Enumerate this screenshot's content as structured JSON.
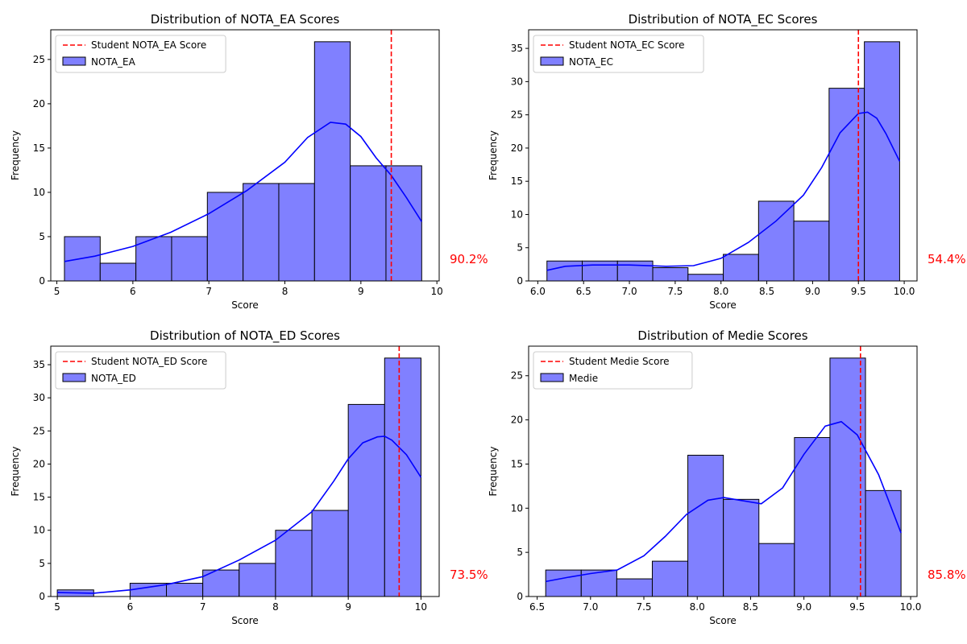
{
  "chart_data": [
    {
      "type": "bar",
      "title": "Distribution of NOTA_EA Scores",
      "xlabel": "Score",
      "ylabel": "Frequency",
      "xlim": [
        4.92,
        10.03
      ],
      "ylim": [
        0,
        28.35
      ],
      "xticks": [
        "5",
        "6",
        "7",
        "8",
        "9",
        "10"
      ],
      "xtick_values": [
        5,
        6,
        7,
        8,
        9,
        10
      ],
      "yticks": [
        "0",
        "5",
        "10",
        "15",
        "20",
        "25"
      ],
      "ytick_values": [
        0,
        5,
        10,
        15,
        20,
        25
      ],
      "bin_edges": [
        5.1,
        5.57,
        6.04,
        6.51,
        6.98,
        7.45,
        7.92,
        8.39,
        8.86,
        9.33,
        9.8
      ],
      "values": [
        5,
        2,
        5,
        5,
        10,
        11,
        11,
        27,
        13,
        13
      ],
      "kde": {
        "x": [
          5.1,
          5.5,
          6.0,
          6.5,
          7.0,
          7.5,
          8.0,
          8.3,
          8.6,
          8.8,
          9.0,
          9.2,
          9.4,
          9.6,
          9.8
        ],
        "y": [
          2.2,
          2.8,
          3.9,
          5.5,
          7.6,
          10.2,
          13.4,
          16.2,
          17.9,
          17.7,
          16.3,
          13.9,
          11.9,
          9.4,
          6.7
        ]
      },
      "student_score": 9.4,
      "legend": [
        "Student NOTA_EA Score",
        "NOTA_EA"
      ],
      "legend_position": "top-left",
      "percentile_label": "90.2%",
      "grid": false
    },
    {
      "type": "bar",
      "title": "Distribution of NOTA_EC Scores",
      "xlabel": "Score",
      "ylabel": "Frequency",
      "xlim": [
        5.9,
        10.14
      ],
      "ylim": [
        0,
        37.8
      ],
      "xticks": [
        "6.0",
        "6.5",
        "7.0",
        "7.5",
        "8.0",
        "8.5",
        "9.0",
        "9.5",
        "10.0"
      ],
      "xtick_values": [
        6.0,
        6.5,
        7.0,
        7.5,
        8.0,
        8.5,
        9.0,
        9.5,
        10.0
      ],
      "yticks": [
        "0",
        "5",
        "10",
        "15",
        "20",
        "25",
        "30",
        "35"
      ],
      "ytick_values": [
        0,
        5,
        10,
        15,
        20,
        25,
        30,
        35
      ],
      "bin_edges": [
        6.1,
        6.485,
        6.87,
        7.255,
        7.64,
        8.025,
        8.41,
        8.795,
        9.18,
        9.565,
        9.95
      ],
      "values": [
        3,
        3,
        3,
        2,
        1,
        4,
        12,
        9,
        29,
        36
      ],
      "kde": {
        "x": [
          6.1,
          6.3,
          6.6,
          7.0,
          7.4,
          7.7,
          8.0,
          8.3,
          8.6,
          8.9,
          9.1,
          9.3,
          9.5,
          9.6,
          9.7,
          9.8,
          9.95
        ],
        "y": [
          1.6,
          2.2,
          2.4,
          2.4,
          2.2,
          2.3,
          3.4,
          5.8,
          9.0,
          12.9,
          17.1,
          22.3,
          25.2,
          25.4,
          24.5,
          22.2,
          18.0
        ]
      },
      "student_score": 9.5,
      "legend": [
        "Student NOTA_EC Score",
        "NOTA_EC"
      ],
      "legend_position": "top-left",
      "percentile_label": "54.4%",
      "grid": false
    },
    {
      "type": "bar",
      "title": "Distribution of NOTA_ED Scores",
      "xlabel": "Score",
      "ylabel": "Frequency",
      "xlim": [
        4.91,
        10.25
      ],
      "ylim": [
        0,
        37.8
      ],
      "xticks": [
        "5",
        "6",
        "7",
        "8",
        "9",
        "10"
      ],
      "xtick_values": [
        5,
        6,
        7,
        8,
        9,
        10
      ],
      "yticks": [
        "0",
        "5",
        "10",
        "15",
        "20",
        "25",
        "30",
        "35"
      ],
      "ytick_values": [
        0,
        5,
        10,
        15,
        20,
        25,
        30,
        35
      ],
      "bin_edges": [
        5.0,
        5.5,
        6.0,
        6.5,
        7.0,
        7.5,
        8.0,
        8.5,
        9.0,
        9.5,
        10.0
      ],
      "values": [
        1,
        0,
        2,
        2,
        4,
        5,
        10,
        13,
        29,
        36
      ],
      "kde": {
        "x": [
          5.0,
          5.5,
          6.0,
          6.5,
          7.0,
          7.5,
          8.0,
          8.5,
          8.8,
          9.0,
          9.2,
          9.4,
          9.5,
          9.6,
          9.8,
          10.0
        ],
        "y": [
          0.6,
          0.5,
          1.0,
          1.8,
          3.0,
          5.5,
          8.5,
          12.8,
          17.4,
          20.8,
          23.2,
          24.1,
          24.2,
          23.6,
          21.4,
          18.0
        ]
      },
      "student_score": 9.7,
      "legend": [
        "Student NOTA_ED Score",
        "NOTA_ED"
      ],
      "legend_position": "top-left",
      "percentile_label": "73.5%",
      "grid": false
    },
    {
      "type": "bar",
      "title": "Distribution of Medie Scores",
      "xlabel": "Score",
      "ylabel": "Frequency",
      "xlim": [
        6.42,
        10.06
      ],
      "ylim": [
        0,
        28.35
      ],
      "xticks": [
        "6.5",
        "7.0",
        "7.5",
        "8.0",
        "8.5",
        "9.0",
        "9.5",
        "10.0"
      ],
      "xtick_values": [
        6.5,
        7.0,
        7.5,
        8.0,
        8.5,
        9.0,
        9.5,
        10.0
      ],
      "yticks": [
        "0",
        "5",
        "10",
        "15",
        "20",
        "25"
      ],
      "ytick_values": [
        0,
        5,
        10,
        15,
        20,
        25
      ],
      "bin_edges": [
        6.58,
        6.913,
        7.246,
        7.579,
        7.912,
        8.245,
        8.578,
        8.911,
        9.244,
        9.577,
        9.91
      ],
      "values": [
        3,
        3,
        2,
        4,
        16,
        11,
        6,
        18,
        27,
        12
      ],
      "kde": {
        "x": [
          6.58,
          6.8,
          7.0,
          7.25,
          7.5,
          7.7,
          7.9,
          8.1,
          8.25,
          8.4,
          8.6,
          8.8,
          9.0,
          9.2,
          9.35,
          9.5,
          9.7,
          9.91
        ],
        "y": [
          1.7,
          2.2,
          2.6,
          3.0,
          4.6,
          6.8,
          9.3,
          10.9,
          11.2,
          10.9,
          10.5,
          12.3,
          16.1,
          19.3,
          19.8,
          18.3,
          13.8,
          7.2
        ]
      },
      "student_score": 9.53,
      "legend": [
        "Student Medie Score",
        "Medie"
      ],
      "legend_position": "top-left",
      "percentile_label": "85.8%",
      "grid": false
    }
  ],
  "colors": {
    "bar_fill": "#8080ff",
    "bar_edge": "#000000",
    "kde_line": "#0000ff",
    "student_line": "#ff0000",
    "percentile_text": "#ff0000",
    "axis": "#000000"
  }
}
